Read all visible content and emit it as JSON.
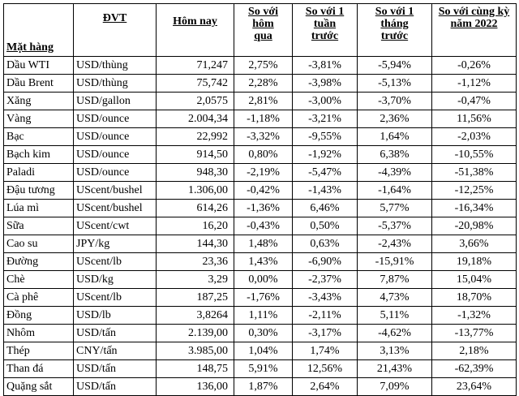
{
  "headers": {
    "name": "Mặt hàng",
    "unit": "ĐVT",
    "today": "Hôm nay",
    "prev_day": [
      "So với",
      "hôm",
      "qua"
    ],
    "week": [
      "So với 1",
      "tuần",
      "trước"
    ],
    "month": [
      "So với 1",
      "tháng",
      "trước"
    ],
    "year": [
      "So với cùng kỳ",
      "năm 2022"
    ]
  },
  "rows": [
    {
      "name": "Dầu WTI",
      "unit": "USD/thùng",
      "today": "71,247",
      "d": "2,75%",
      "w": "-3,81%",
      "m": "-5,94%",
      "y": "-0,26%"
    },
    {
      "name": "Dầu Brent",
      "unit": "USD/thùng",
      "today": "75,742",
      "d": "2,28%",
      "w": "-3,98%",
      "m": "-5,13%",
      "y": "-1,12%"
    },
    {
      "name": "Xăng",
      "unit": "USD/gallon",
      "today": "2,0575",
      "d": "2,81%",
      "w": "-3,00%",
      "m": "-3,70%",
      "y": "-0,47%"
    },
    {
      "name": "Vàng",
      "unit": "USD/ounce",
      "today": "2.004,34",
      "d": "-1,18%",
      "w": "-3,21%",
      "m": "2,36%",
      "y": "11,56%"
    },
    {
      "name": "Bạc",
      "unit": "USD/ounce",
      "today": "22,992",
      "d": "-3,32%",
      "w": "-9,55%",
      "m": "1,64%",
      "y": "-2,03%"
    },
    {
      "name": "Bạch kim",
      "unit": "USD/ounce",
      "today": "914,50",
      "d": "0,80%",
      "w": "-1,92%",
      "m": "6,38%",
      "y": "-10,55%"
    },
    {
      "name": "Paladi",
      "unit": "USD/ounce",
      "today": "948,30",
      "d": "-2,19%",
      "w": "-5,47%",
      "m": "-4,39%",
      "y": "-51,38%"
    },
    {
      "name": "Đậu tương",
      "unit": "UScent/bushel",
      "today": "1.306,00",
      "d": "-0,42%",
      "w": "-1,43%",
      "m": "-1,64%",
      "y": "-12,25%"
    },
    {
      "name": "Lúa mì",
      "unit": "UScent/bushel",
      "today": "614,26",
      "d": "-1,36%",
      "w": "6,46%",
      "m": "5,77%",
      "y": "-16,34%"
    },
    {
      "name": "Sữa",
      "unit": "UScent/cwt",
      "today": "16,20",
      "d": "-0,43%",
      "w": "0,50%",
      "m": "-5,37%",
      "y": "-20,98%"
    },
    {
      "name": "Cao su",
      "unit": "JPY/kg",
      "today": "144,30",
      "d": "1,48%",
      "w": "0,63%",
      "m": "-2,43%",
      "y": "3,66%"
    },
    {
      "name": "Đường",
      "unit": "UScent/lb",
      "today": "23,36",
      "d": "1,43%",
      "w": "-6,90%",
      "m": "-15,91%",
      "y": "19,18%"
    },
    {
      "name": "Chè",
      "unit": "USD/kg",
      "today": "3,29",
      "d": "0,00%",
      "w": "-2,37%",
      "m": "7,87%",
      "y": "15,04%"
    },
    {
      "name": "Cà phê",
      "unit": "UScent/lb",
      "today": "187,25",
      "d": "-1,76%",
      "w": "-3,43%",
      "m": "4,73%",
      "y": "18,70%"
    },
    {
      "name": "Đồng",
      "unit": "USD/lb",
      "today": "3,8264",
      "d": "1,11%",
      "w": "-2,11%",
      "m": "5,11%",
      "y": "-1,32%"
    },
    {
      "name": "Nhôm",
      "unit": "USD/tấn",
      "today": "2.139,00",
      "d": "0,30%",
      "w": "-3,17%",
      "m": "-4,62%",
      "y": "-13,77%"
    },
    {
      "name": "Thép",
      "unit": "CNY/tấn",
      "today": "3.985,00",
      "d": "1,04%",
      "w": "1,74%",
      "m": "3,13%",
      "y": "2,18%"
    },
    {
      "name": "Than đá",
      "unit": "USD/tấn",
      "today": "148,75",
      "d": "5,91%",
      "w": "12,56%",
      "m": "21,43%",
      "y": "-62,39%"
    },
    {
      "name": "Quặng sắt",
      "unit": "USD/tấn",
      "today": "136,00",
      "d": "1,87%",
      "w": "2,64%",
      "m": "7,09%",
      "y": "23,64%"
    }
  ]
}
